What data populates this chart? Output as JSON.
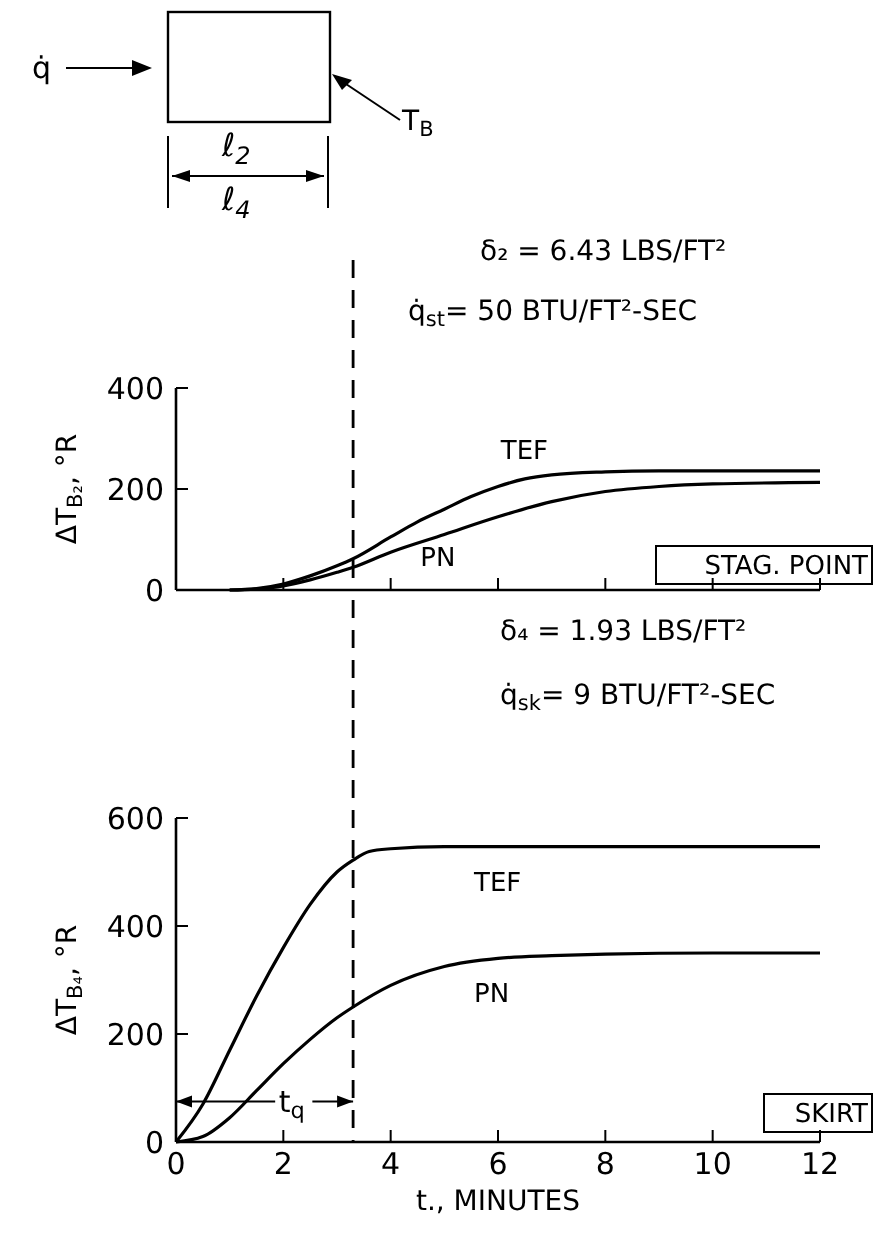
{
  "chart_data": [
    {
      "type": "line",
      "ylabel": "ΔT$_{B₂}$, °R",
      "annotations": [
        "q̇",
        "T$_{B}$",
        "ℓ$_{2}$",
        "ℓ$_{4}$",
        "δ₂ = 6.43 LBS/FT²",
        "q̇$_{st}$= 50 BTU/FT²-SEC",
        "STAG. POINT"
      ],
      "xlim": [
        0,
        12
      ],
      "xticks": [
        0,
        2,
        4,
        6,
        8,
        10,
        12
      ],
      "ylim": [
        0,
        400
      ],
      "yticks": [
        0,
        200,
        400
      ],
      "tick_labels": "y",
      "marker": "none",
      "ref_lines": [
        {
          "axis": "x",
          "value": 3.3,
          "line_style": "dashed",
          "color": "#000000"
        }
      ],
      "series": [
        {
          "name": "TEF",
          "color": "#000000",
          "x": [
            1,
            1.5,
            2,
            2.5,
            3,
            3.3,
            4,
            4.5,
            5,
            5.5,
            6,
            6.5,
            7,
            8,
            9,
            10,
            12
          ],
          "values": [
            0,
            3,
            12,
            28,
            48,
            62,
            105,
            135,
            160,
            185,
            205,
            220,
            228,
            234,
            236,
            236,
            236
          ]
        },
        {
          "name": "PN",
          "color": "#000000",
          "x": [
            1,
            1.5,
            2,
            2.5,
            3,
            3.3,
            4,
            5,
            6,
            7,
            8,
            9,
            10,
            12
          ],
          "values": [
            0,
            2,
            8,
            20,
            35,
            45,
            75,
            110,
            145,
            175,
            195,
            205,
            210,
            213
          ]
        }
      ]
    },
    {
      "type": "line",
      "xlabel": "t., MINUTES",
      "ylabel": "ΔT$_{B₄}$, °R",
      "annotations": [
        {
          "text": "t$_{q}$",
          "x": 3.3,
          "y": 75
        },
        "δ₄ = 1.93 LBS/FT²",
        "q̇$_{sk}$= 9 BTU/FT²-SEC",
        "SKIRT"
      ],
      "xlim": [
        0,
        12
      ],
      "xticks": [
        0,
        2,
        4,
        6,
        8,
        10,
        12
      ],
      "ylim": [
        0,
        600
      ],
      "yticks": [
        0,
        200,
        400,
        600
      ],
      "marker": "none",
      "ref_lines": [
        {
          "axis": "x",
          "value": 3.3,
          "line_style": "dashed",
          "color": "#000000"
        }
      ],
      "series": [
        {
          "name": "TEF",
          "color": "#000000",
          "x": [
            0,
            0.5,
            1,
            1.5,
            2,
            2.5,
            3,
            3.3,
            3.6,
            4,
            5,
            6,
            8,
            10,
            12
          ],
          "values": [
            0,
            70,
            170,
            270,
            360,
            440,
            500,
            522,
            538,
            543,
            547,
            547,
            547,
            547,
            547
          ]
        },
        {
          "name": "PN",
          "color": "#000000",
          "x": [
            0,
            0.5,
            1,
            1.5,
            2,
            2.5,
            3,
            3.3,
            4,
            5,
            6,
            7,
            8,
            10,
            12
          ],
          "values": [
            0,
            10,
            45,
            95,
            145,
            190,
            230,
            250,
            290,
            325,
            340,
            345,
            348,
            350,
            350
          ]
        }
      ]
    }
  ]
}
